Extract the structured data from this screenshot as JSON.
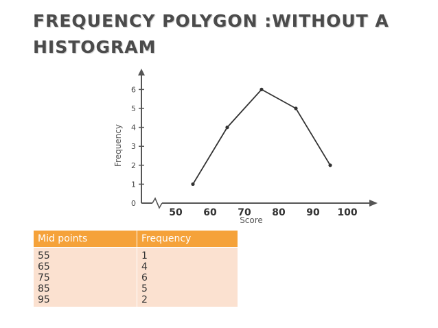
{
  "title": "Frequency polygon :without a histogram",
  "chart_data": {
    "type": "line",
    "title": "",
    "xlabel": "Score",
    "ylabel": "Frequency",
    "x_tick_labels": [
      "50",
      "60",
      "70",
      "80",
      "90",
      "100"
    ],
    "x_ticks": [
      50,
      60,
      70,
      80,
      90,
      100
    ],
    "y_ticks": [
      0,
      1,
      2,
      3,
      4,
      5,
      6
    ],
    "y_tick_labels": [
      "0",
      "1",
      "2",
      "3",
      "4",
      "5",
      "6"
    ],
    "xlim": [
      50,
      100
    ],
    "ylim": [
      0,
      6
    ],
    "axis_break": true,
    "grid": false,
    "series": [
      {
        "x": [
          55,
          65,
          75,
          85,
          95
        ],
        "y": [
          1,
          4,
          6,
          5,
          2
        ]
      }
    ],
    "line_color": "#333333"
  },
  "table": {
    "headers": [
      "Mid points",
      "Frequency"
    ],
    "mid_points": [
      "55",
      "65",
      "75",
      "85",
      "95"
    ],
    "frequencies": [
      "1",
      "4",
      "6",
      "5",
      "2"
    ],
    "header_color": "#f5a23a",
    "row_color": "#fbe1d0"
  }
}
